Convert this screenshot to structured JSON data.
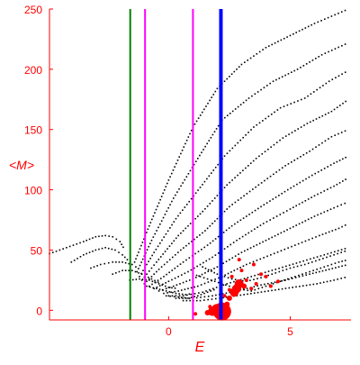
{
  "chart_data": {
    "type": "scatter",
    "xlabel": "E",
    "ylabel": "<M>",
    "xlim": [
      -4.9,
      7.5
    ],
    "ylim": [
      -8,
      250
    ],
    "x_ticks": [
      0,
      5
    ],
    "y_ticks": [
      0,
      50,
      100,
      150,
      200,
      250
    ],
    "grid": false,
    "colors": {
      "axis": "#ff0000",
      "label": "#ff0000",
      "points": "#000000",
      "highlight_points": "#ff0000",
      "line_green": "#008000",
      "line_magenta": "#ff00ff",
      "line_blue": "#0000ff"
    },
    "vertical_lines": [
      {
        "x": -1.58,
        "color": "#008000",
        "width": 2
      },
      {
        "x": -0.97,
        "color": "#ff00ff",
        "width": 2
      },
      {
        "x": 1.0,
        "color": "#ff00ff",
        "width": 2
      },
      {
        "x": 2.15,
        "color": "#0000ff",
        "width": 4
      }
    ],
    "branches": [
      {
        "points": [
          [
            -4.9,
            47
          ],
          [
            -4.2,
            52
          ],
          [
            -3.5,
            57
          ],
          [
            -3.0,
            61
          ],
          [
            -2.6,
            62
          ],
          [
            -2.3,
            61
          ],
          [
            -2.0,
            57
          ],
          [
            -1.8,
            50
          ]
        ]
      },
      {
        "points": [
          [
            -4.0,
            40
          ],
          [
            -3.5,
            46
          ],
          [
            -3.0,
            50
          ],
          [
            -2.6,
            52
          ],
          [
            -2.2,
            50
          ],
          [
            -1.9,
            46
          ],
          [
            -1.6,
            40
          ]
        ]
      },
      {
        "points": [
          [
            -3.2,
            35
          ],
          [
            -2.8,
            38
          ],
          [
            -2.3,
            40
          ],
          [
            -1.9,
            40
          ],
          [
            -1.5,
            38
          ],
          [
            -1.2,
            34
          ]
        ]
      },
      {
        "points": [
          [
            -2.3,
            30
          ],
          [
            -1.9,
            33
          ],
          [
            -1.5,
            33
          ],
          [
            -1.1,
            30
          ],
          [
            -0.7,
            26
          ],
          [
            -0.3,
            22
          ]
        ]
      },
      {
        "points": [
          [
            -1.6,
            25
          ],
          [
            -1.2,
            26
          ],
          [
            -0.8,
            25
          ],
          [
            -0.4,
            22
          ],
          [
            0.0,
            19
          ],
          [
            0.4,
            18
          ]
        ]
      },
      {
        "points": [
          [
            -0.9,
            20
          ],
          [
            -0.5,
            18
          ],
          [
            -0.1,
            16
          ],
          [
            0.3,
            14
          ],
          [
            0.7,
            13
          ],
          [
            1.0,
            14
          ]
        ]
      },
      {
        "points": [
          [
            -0.1,
            12
          ],
          [
            0.4,
            11
          ],
          [
            0.8,
            10
          ],
          [
            1.2,
            12
          ],
          [
            1.6,
            15
          ],
          [
            2.0,
            18
          ]
        ]
      },
      {
        "points": [
          [
            -1.4,
            40
          ],
          [
            -0.8,
            70
          ],
          [
            0.0,
            108
          ],
          [
            1.0,
            152
          ],
          [
            2.0,
            184
          ],
          [
            3.0,
            204
          ],
          [
            4.0,
            218
          ],
          [
            5.0,
            228
          ],
          [
            6.0,
            238
          ],
          [
            7.4,
            250
          ]
        ]
      },
      {
        "points": [
          [
            -1.3,
            32
          ],
          [
            -0.7,
            58
          ],
          [
            0.2,
            93
          ],
          [
            1.2,
            126
          ],
          [
            2.2,
            158
          ],
          [
            3.3,
            176
          ],
          [
            4.3,
            190
          ],
          [
            5.3,
            200
          ],
          [
            6.3,
            212
          ],
          [
            7.4,
            222
          ]
        ]
      },
      {
        "points": [
          [
            -1.2,
            28
          ],
          [
            -0.6,
            48
          ],
          [
            0.3,
            76
          ],
          [
            1.3,
            102
          ],
          [
            2.3,
            128
          ],
          [
            3.5,
            152
          ],
          [
            4.6,
            168
          ],
          [
            5.6,
            176
          ],
          [
            6.6,
            190
          ],
          [
            7.4,
            199
          ]
        ]
      },
      {
        "points": [
          [
            -1.1,
            25
          ],
          [
            -0.5,
            40
          ],
          [
            0.4,
            62
          ],
          [
            1.4,
            82
          ],
          [
            2.4,
            104
          ],
          [
            3.6,
            126
          ],
          [
            4.7,
            143
          ],
          [
            5.7,
            155
          ],
          [
            6.7,
            165
          ],
          [
            7.4,
            175
          ]
        ]
      },
      {
        "points": [
          [
            -1.0,
            22
          ],
          [
            -0.4,
            34
          ],
          [
            0.5,
            50
          ],
          [
            1.5,
            66
          ],
          [
            2.5,
            86
          ],
          [
            3.7,
            104
          ],
          [
            4.8,
            120
          ],
          [
            5.8,
            132
          ],
          [
            6.7,
            144
          ],
          [
            7.4,
            150
          ]
        ]
      },
      {
        "points": [
          [
            -0.8,
            20
          ],
          [
            -0.2,
            28
          ],
          [
            0.6,
            40
          ],
          [
            1.6,
            54
          ],
          [
            2.6,
            70
          ],
          [
            3.8,
            86
          ],
          [
            4.9,
            100
          ],
          [
            5.9,
            112
          ],
          [
            6.8,
            122
          ],
          [
            7.4,
            128
          ]
        ]
      },
      {
        "points": [
          [
            -0.6,
            18
          ],
          [
            0.0,
            24
          ],
          [
            0.8,
            32
          ],
          [
            1.8,
            44
          ],
          [
            2.8,
            58
          ],
          [
            3.9,
            72
          ],
          [
            5.0,
            84
          ],
          [
            6.0,
            95
          ],
          [
            6.8,
            103
          ],
          [
            7.4,
            110
          ]
        ]
      },
      {
        "points": [
          [
            -0.4,
            16
          ],
          [
            0.2,
            20
          ],
          [
            1.0,
            26
          ],
          [
            2.0,
            36
          ],
          [
            3.0,
            48
          ],
          [
            4.0,
            58
          ],
          [
            5.0,
            68
          ],
          [
            6.0,
            78
          ],
          [
            6.8,
            85
          ],
          [
            7.4,
            90
          ]
        ]
      },
      {
        "points": [
          [
            -0.2,
            14
          ],
          [
            0.4,
            16
          ],
          [
            1.2,
            20
          ],
          [
            2.2,
            28
          ],
          [
            3.2,
            38
          ],
          [
            4.2,
            46
          ],
          [
            5.2,
            54
          ],
          [
            6.2,
            62
          ],
          [
            7.0,
            68
          ],
          [
            7.4,
            72
          ]
        ]
      },
      {
        "points": [
          [
            0.0,
            12
          ],
          [
            0.6,
            12
          ],
          [
            1.4,
            15
          ],
          [
            2.4,
            22
          ],
          [
            3.4,
            28
          ],
          [
            4.4,
            34
          ],
          [
            5.4,
            40
          ],
          [
            6.4,
            46
          ],
          [
            7.4,
            52
          ]
        ]
      },
      {
        "points": [
          [
            0.3,
            10
          ],
          [
            1.0,
            10
          ],
          [
            1.8,
            12
          ],
          [
            2.8,
            16
          ],
          [
            3.8,
            21
          ],
          [
            4.8,
            25
          ],
          [
            5.8,
            30
          ],
          [
            6.6,
            34
          ],
          [
            7.4,
            38
          ]
        ]
      },
      {
        "points": [
          [
            0.6,
            8
          ],
          [
            1.3,
            8
          ],
          [
            2.1,
            10
          ],
          [
            3.1,
            13
          ],
          [
            4.1,
            16
          ],
          [
            5.1,
            19
          ],
          [
            6.1,
            22
          ],
          [
            6.8,
            25
          ],
          [
            7.4,
            28
          ]
        ]
      },
      {
        "points": [
          [
            1.0,
            30
          ],
          [
            1.6,
            26
          ],
          [
            2.2,
            22
          ],
          [
            2.8,
            18
          ],
          [
            3.4,
            16
          ],
          [
            4.0,
            20
          ],
          [
            4.6,
            24
          ],
          [
            5.2,
            28
          ],
          [
            5.8,
            32
          ],
          [
            6.4,
            36
          ],
          [
            7.0,
            40
          ],
          [
            7.4,
            42
          ]
        ]
      },
      {
        "points": [
          [
            1.4,
            36
          ],
          [
            2.0,
            30
          ],
          [
            2.6,
            26
          ],
          [
            3.2,
            24
          ],
          [
            3.8,
            27
          ],
          [
            4.4,
            31
          ],
          [
            5.0,
            35
          ],
          [
            5.6,
            38
          ],
          [
            6.2,
            42
          ],
          [
            6.8,
            46
          ],
          [
            7.4,
            50
          ]
        ]
      }
    ],
    "highlight_points": [
      {
        "x": 1.6,
        "y": -2,
        "size": 3
      },
      {
        "x": 1.8,
        "y": -1,
        "size": 5
      },
      {
        "x": 2.0,
        "y": 0,
        "size": 7
      },
      {
        "x": 2.2,
        "y": -1,
        "size": 10
      },
      {
        "x": 1.1,
        "y": -3,
        "size": 2
      },
      {
        "x": 2.4,
        "y": 5,
        "size": 3
      },
      {
        "x": 2.5,
        "y": 10,
        "size": 3
      },
      {
        "x": 2.7,
        "y": 15,
        "size": 5
      },
      {
        "x": 2.8,
        "y": 18,
        "size": 5
      },
      {
        "x": 2.9,
        "y": 22,
        "size": 5
      },
      {
        "x": 3.1,
        "y": 20,
        "size": 3
      },
      {
        "x": 3.2,
        "y": 25,
        "size": 2
      },
      {
        "x": 3.4,
        "y": 18,
        "size": 2
      },
      {
        "x": 3.6,
        "y": 22,
        "size": 2
      },
      {
        "x": 3.8,
        "y": 30,
        "size": 2
      },
      {
        "x": 3.0,
        "y": 33,
        "size": 2
      },
      {
        "x": 2.6,
        "y": 28,
        "size": 2
      },
      {
        "x": 3.5,
        "y": 38,
        "size": 2
      },
      {
        "x": 4.0,
        "y": 28,
        "size": 2
      },
      {
        "x": 4.2,
        "y": 20,
        "size": 2
      },
      {
        "x": 2.9,
        "y": 42,
        "size": 2
      },
      {
        "x": 2.5,
        "y": 17,
        "size": 2
      },
      {
        "x": 2.3,
        "y": 12,
        "size": 2
      },
      {
        "x": 1.7,
        "y": 3,
        "size": 2
      },
      {
        "x": 4.5,
        "y": 24,
        "size": 2
      }
    ]
  }
}
